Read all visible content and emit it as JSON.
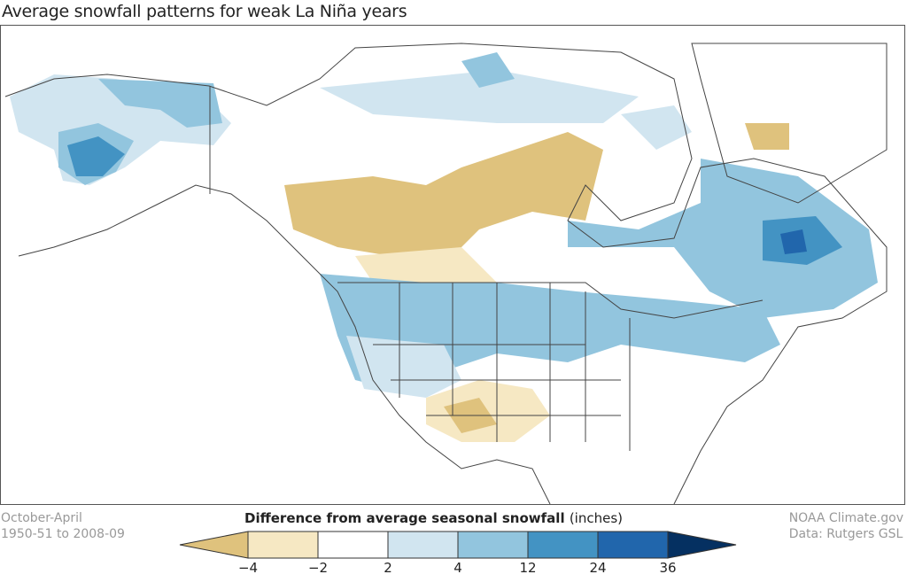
{
  "title": "Average snowfall patterns for weak La Niña years",
  "period": {
    "months": "October-April",
    "years": "1950-51 to 2008-09"
  },
  "credits": {
    "source": "NOAA Climate.gov",
    "data": "Data: Rutgers GSL"
  },
  "legend": {
    "title": "Difference from average seasonal snowfall",
    "units": "(inches)",
    "ticks": [
      "−4",
      "−2",
      "2",
      "4",
      "12",
      "24",
      "36"
    ],
    "colors": [
      "#dfc27d",
      "#f6e8c3",
      "#ffffff",
      "#d1e5f0",
      "#92c5de",
      "#4393c3",
      "#2166ac",
      "#053061"
    ]
  }
}
